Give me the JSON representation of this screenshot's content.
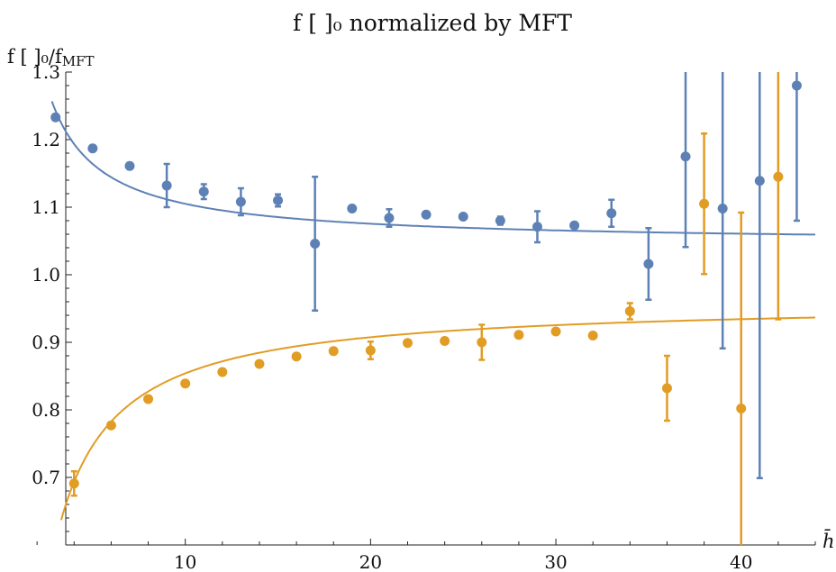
{
  "chart_data": {
    "type": "scatter",
    "title": "f  [  ]₀ normalized by MFT",
    "ylabel": "f  [  ]₀/f",
    "ylabel_sub": "MFT",
    "xlabel": "h̄",
    "xlim": [
      0,
      44
    ],
    "ylim": [
      0.6,
      1.3
    ],
    "x_ticks": [
      10,
      20,
      30,
      40
    ],
    "y_ticks": [
      0.7,
      0.8,
      0.9,
      1.0,
      1.1,
      1.2,
      1.3
    ],
    "y_tick_labels": [
      "0.7",
      "0.8",
      "0.9",
      "1.0",
      "1.1",
      "1.2",
      "1.3"
    ],
    "x_tick_labels": [
      "10",
      "20",
      "30",
      "40"
    ],
    "grid": false,
    "series": [
      {
        "color": "#5e81b5",
        "points": [
          {
            "x": 3,
            "y": 1.233,
            "err": 0
          },
          {
            "x": 5,
            "y": 1.187,
            "err": 0
          },
          {
            "x": 7,
            "y": 1.161,
            "err": 0
          },
          {
            "x": 9,
            "y": 1.132,
            "err": 0.032
          },
          {
            "x": 11,
            "y": 1.123,
            "err": 0.011
          },
          {
            "x": 13,
            "y": 1.108,
            "err": 0.02
          },
          {
            "x": 15,
            "y": 1.11,
            "err": 0.009
          },
          {
            "x": 17,
            "y": 1.046,
            "err": 0.099
          },
          {
            "x": 19,
            "y": 1.098,
            "err": 0
          },
          {
            "x": 21,
            "y": 1.084,
            "err": 0.013
          },
          {
            "x": 23,
            "y": 1.089,
            "err": 0
          },
          {
            "x": 25,
            "y": 1.086,
            "err": 0
          },
          {
            "x": 27,
            "y": 1.08,
            "err": 0.006
          },
          {
            "x": 29,
            "y": 1.071,
            "err": 0.023
          },
          {
            "x": 31,
            "y": 1.073,
            "err": 0
          },
          {
            "x": 33,
            "y": 1.091,
            "err": 0.02
          },
          {
            "x": 35,
            "y": 1.016,
            "err": 0.053
          },
          {
            "x": 37,
            "y": 1.175,
            "err": 0.134
          },
          {
            "x": 39,
            "y": 1.098,
            "err": 0.207
          },
          {
            "x": 41,
            "y": 1.139,
            "err": 0.44
          },
          {
            "x": 43,
            "y": 1.28,
            "err": 0.2
          }
        ],
        "fit": {
          "a": 1.046,
          "b": 0.59
        }
      },
      {
        "color": "#e19c24",
        "points": [
          {
            "x": 4,
            "y": 0.691,
            "err": 0.018
          },
          {
            "x": 6,
            "y": 0.777,
            "err": 0
          },
          {
            "x": 8,
            "y": 0.816,
            "err": 0
          },
          {
            "x": 10,
            "y": 0.839,
            "err": 0
          },
          {
            "x": 12,
            "y": 0.856,
            "err": 0
          },
          {
            "x": 14,
            "y": 0.868,
            "err": 0
          },
          {
            "x": 16,
            "y": 0.879,
            "err": 0
          },
          {
            "x": 18,
            "y": 0.887,
            "err": 0
          },
          {
            "x": 20,
            "y": 0.888,
            "err": 0.013
          },
          {
            "x": 22,
            "y": 0.899,
            "err": 0
          },
          {
            "x": 24,
            "y": 0.902,
            "err": 0
          },
          {
            "x": 26,
            "y": 0.9,
            "err": 0.026
          },
          {
            "x": 28,
            "y": 0.911,
            "err": 0
          },
          {
            "x": 30,
            "y": 0.916,
            "err": 0
          },
          {
            "x": 32,
            "y": 0.91,
            "err": 0
          },
          {
            "x": 34,
            "y": 0.946,
            "err": 0.012
          },
          {
            "x": 36,
            "y": 0.832,
            "err": 0.048
          },
          {
            "x": 38,
            "y": 1.105,
            "err": 0.104
          },
          {
            "x": 40,
            "y": 0.802,
            "err": 0.29
          },
          {
            "x": 42,
            "y": 1.145,
            "err": 0.211
          }
        ],
        "fit": {
          "a": 0.961,
          "b": -1.07
        }
      }
    ]
  }
}
